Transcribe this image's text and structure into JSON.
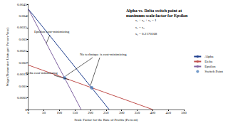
{
  "chart_data": {
    "type": "line",
    "title": "Alpha vs. Delta switch point at\nmaximum scale factor for Epsilon",
    "x_label": "Scale Factor for the Rate of Profits (Percent)",
    "y_label": "Wage (Numeraire Units per Person-Year)",
    "series": [
      {
        "name": "Alpha",
        "color": "#1f3f8f",
        "x": [
          0,
          260
        ],
        "values": [
          0.0043,
          0
        ]
      },
      {
        "name": "Delta",
        "color": "#c0504d",
        "x": [
          0,
          400
        ],
        "values": [
          0.0019,
          0
        ]
      },
      {
        "name": "Epsilon",
        "color": "#8064a2",
        "x": [
          0,
          170
        ],
        "values": [
          0.0043,
          0
        ]
      },
      {
        "name": "Switch Point",
        "type": "scatter",
        "marker": "circle",
        "color": "#4f81bd",
        "x": [
          117,
          204
        ],
        "values": [
          0.00135,
          0.00093
        ]
      }
    ],
    "xlim": [
      0,
      500
    ],
    "xticks": [
      0,
      50,
      100,
      150,
      200,
      250,
      300,
      350,
      400,
      450,
      500
    ],
    "ylim": [
      0,
      0.0045
    ],
    "yticks": [
      0,
      0.0005,
      0.001,
      0.0015,
      0.002,
      0.0025,
      0.003,
      0.0035,
      0.004,
      0.0045
    ],
    "grid": false,
    "legend": "right",
    "annotations": [
      "s₁ + s₂ + s₃ = 1",
      "s₁ = s₃",
      "s₃ = 0.2170168",
      "Epsilon cost-minimizing",
      "Delta cost-minimizing",
      "No technique is cost-minimizing"
    ]
  }
}
